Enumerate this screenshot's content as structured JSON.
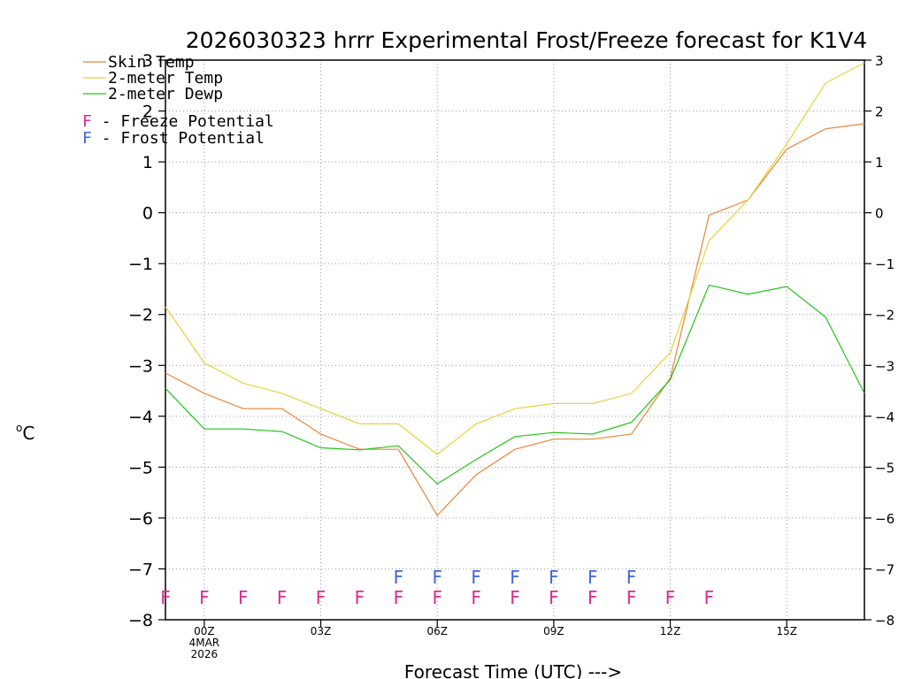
{
  "chart_data": {
    "type": "line",
    "title": "2026030323 hrrr Experimental Frost/Freeze forecast for K1V4",
    "xlabel": "Forecast Time (UTC) --->",
    "ylabel": "°C",
    "ylabel_sup": "o",
    "ylabel_main": "C",
    "ylim": [
      -8,
      3
    ],
    "xlim": [
      -1,
      17
    ],
    "yticks": [
      3,
      2,
      1,
      0,
      -1,
      -2,
      -3,
      -4,
      -5,
      -6,
      -7,
      -8
    ],
    "ytick_labels": [
      "3",
      "2",
      "1",
      "0",
      "−1",
      "−2",
      "−3",
      "−4",
      "−5",
      "−6",
      "−7",
      "−8"
    ],
    "xticks": [
      {
        "x": 0,
        "lines": [
          "00Z",
          "4MAR",
          "2026"
        ]
      },
      {
        "x": 3,
        "lines": [
          "03Z"
        ]
      },
      {
        "x": 6,
        "lines": [
          "06Z"
        ]
      },
      {
        "x": 9,
        "lines": [
          "09Z"
        ]
      },
      {
        "x": 12,
        "lines": [
          "12Z"
        ]
      },
      {
        "x": 15,
        "lines": [
          "15Z"
        ]
      }
    ],
    "x": [
      -1,
      0,
      1,
      2,
      3,
      4,
      5,
      6,
      7,
      8,
      9,
      10,
      11,
      12,
      13,
      14,
      15,
      16,
      17
    ],
    "series": [
      {
        "name": "Skin Temp",
        "color": "#e8853a",
        "values": [
          -3.15,
          -3.55,
          -3.85,
          -3.85,
          -4.35,
          -4.65,
          -4.65,
          -5.95,
          -5.15,
          -4.65,
          -4.45,
          -4.45,
          -4.35,
          -3.25,
          -0.05,
          0.25,
          1.25,
          1.65,
          1.75
        ]
      },
      {
        "name": "2-meter Temp",
        "color": "#e8d23a",
        "values": [
          -1.85,
          -2.95,
          -3.35,
          -3.55,
          -3.85,
          -4.15,
          -4.15,
          -4.75,
          -4.15,
          -3.85,
          -3.75,
          -3.75,
          -3.55,
          -2.75,
          -0.55,
          0.25,
          1.35,
          2.55,
          2.95
        ]
      },
      {
        "name": "2-meter Dewp",
        "color": "#22c51a",
        "values": [
          -3.45,
          -4.25,
          -4.25,
          -4.3,
          -4.62,
          -4.66,
          -4.58,
          -5.33,
          -4.85,
          -4.4,
          -4.32,
          -4.35,
          -4.12,
          -3.28,
          -1.42,
          -1.6,
          -1.45,
          -2.05,
          -3.55
        ]
      }
    ],
    "legend": {
      "placement": "top-left",
      "items": [
        {
          "label": "Skin Temp",
          "color": "#e8853a"
        },
        {
          "label": "2-meter Temp",
          "color": "#e8d23a"
        },
        {
          "label": "2-meter Dewp",
          "color": "#22c51a"
        }
      ],
      "flags": [
        {
          "letter": "F",
          "label": " - Freeze Potential",
          "color": "#dd2a90"
        },
        {
          "letter": "F",
          "label": " - Frost Potential",
          "color": "#4163e0"
        }
      ]
    },
    "freeze_potential": {
      "letter": "F",
      "color": "#dd2a90",
      "y": -7.55,
      "x": [
        -1,
        0,
        1,
        2,
        3,
        4,
        5,
        6,
        7,
        8,
        9,
        10,
        11,
        12,
        13
      ]
    },
    "frost_potential": {
      "letter": "F",
      "color": "#4163e0",
      "y": -7.15,
      "x": [
        5,
        6,
        7,
        8,
        9,
        10,
        11
      ]
    },
    "grid": true
  }
}
